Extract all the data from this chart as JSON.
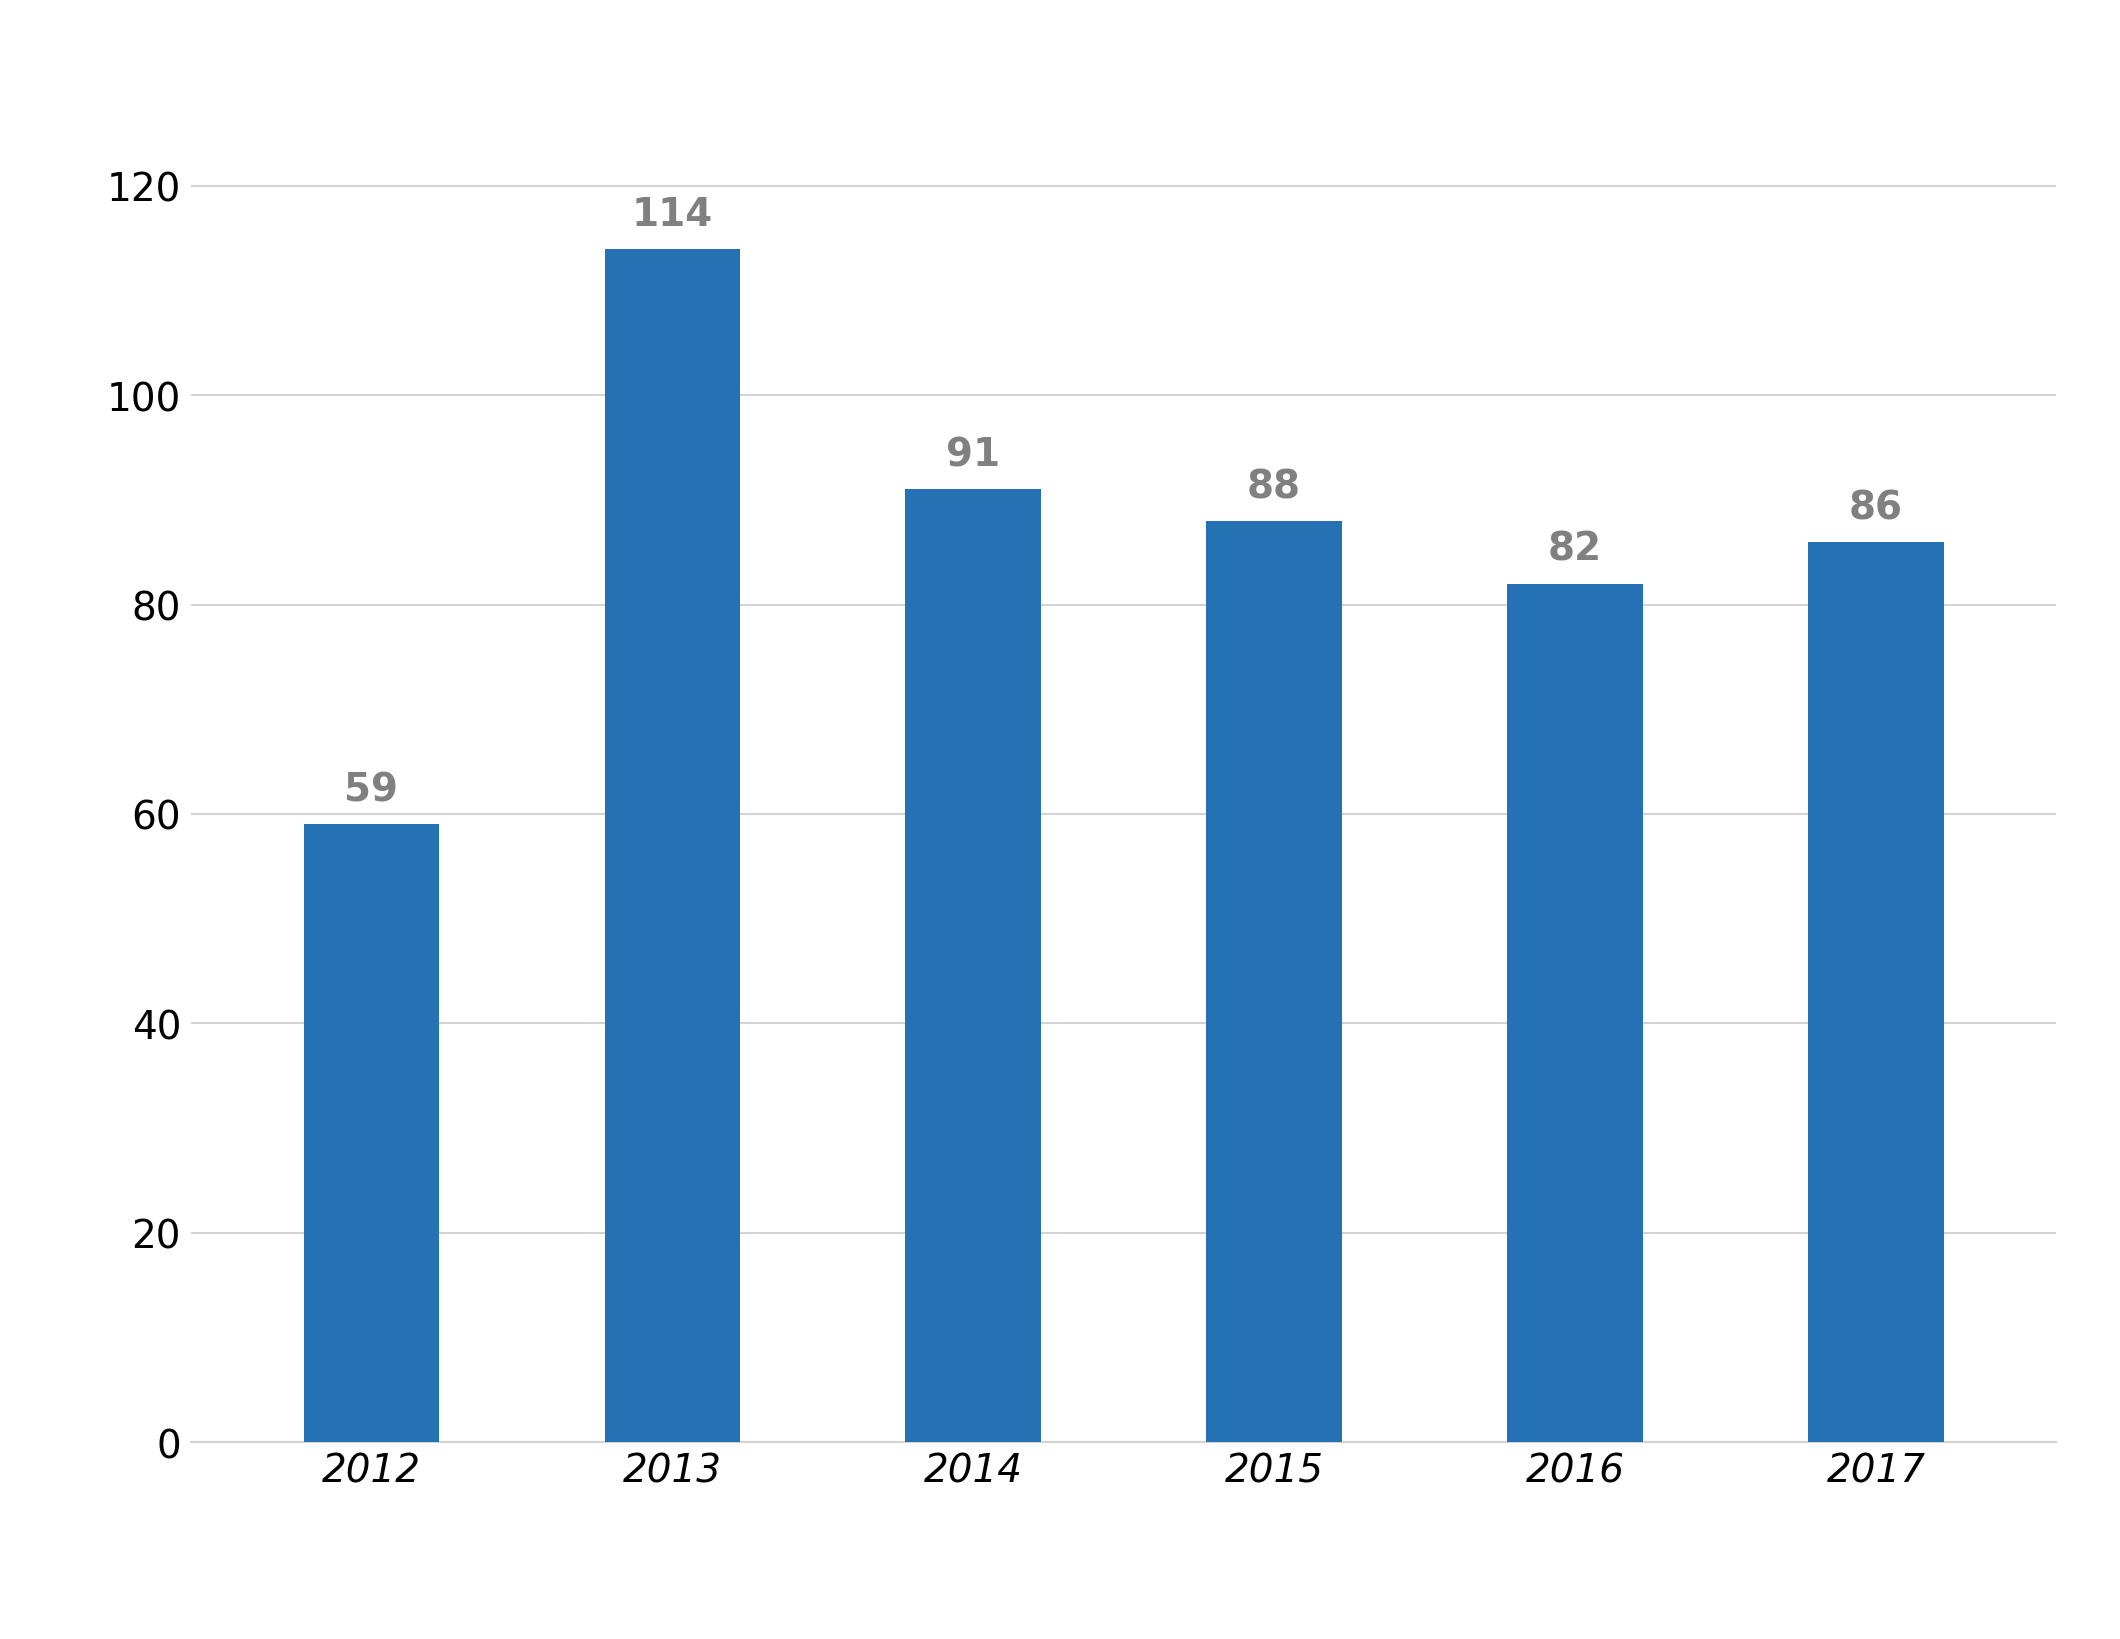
{
  "categories": [
    "2012",
    "2013",
    "2014",
    "2015",
    "2016",
    "2017"
  ],
  "values": [
    59,
    114,
    91,
    88,
    82,
    86
  ],
  "bar_color": "#2472B3",
  "label_color": "#808080",
  "background_color": "#FFFFFF",
  "grid_color": "#D3D3D3",
  "border_color": "#C8C8C8",
  "tick_color": "#000000",
  "ylim": [
    0,
    130
  ],
  "yticks": [
    0,
    20,
    40,
    60,
    80,
    100,
    120
  ],
  "bar_label_fontsize": 28,
  "tick_fontsize": 28,
  "bar_width": 0.45,
  "fig_width": 21.2,
  "fig_height": 16.4,
  "dpi": 100
}
